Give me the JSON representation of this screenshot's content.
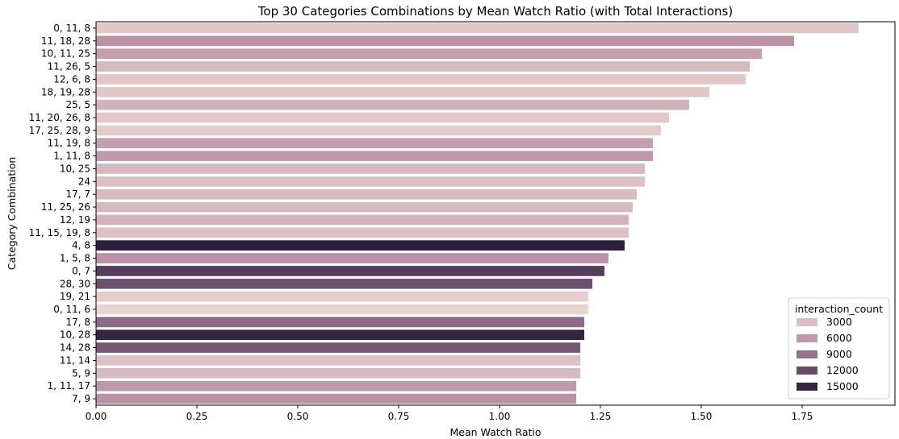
{
  "chart_data": {
    "type": "bar",
    "orientation": "horizontal",
    "title": "Top 30 Categories Combinations by Mean Watch Ratio (with Total Interactions)",
    "xlabel": "Mean Watch Ratio",
    "ylabel": "Category Combination",
    "xlim": [
      0,
      1.98
    ],
    "xticks": [
      0.0,
      0.25,
      0.5,
      0.75,
      1.0,
      1.25,
      1.5,
      1.75
    ],
    "xtick_labels": [
      "0.00",
      "0.25",
      "0.50",
      "0.75",
      "1.00",
      "1.25",
      "1.50",
      "1.75"
    ],
    "grid": false,
    "categories": [
      "0, 11, 8",
      "11, 18, 28",
      "10, 11, 25",
      "11, 26, 5",
      "12, 6, 8",
      "18, 19, 28",
      "25, 5",
      "11, 20, 26, 8",
      "17, 25, 28, 9",
      "11, 19, 8",
      "1, 11, 8",
      "10, 25",
      "24",
      "17, 7",
      "11, 25, 26",
      "12, 19",
      "11, 15, 19, 8",
      "4, 8",
      "1, 5, 8",
      "0, 7",
      "28, 30",
      "19, 21",
      "0, 11, 6",
      "17, 8",
      "10, 28",
      "14, 28",
      "11, 14",
      "5, 9",
      "1, 11, 17",
      "7, 9"
    ],
    "values": [
      1.89,
      1.73,
      1.65,
      1.62,
      1.61,
      1.52,
      1.47,
      1.42,
      1.4,
      1.38,
      1.38,
      1.36,
      1.36,
      1.34,
      1.33,
      1.32,
      1.32,
      1.31,
      1.27,
      1.26,
      1.23,
      1.22,
      1.22,
      1.21,
      1.21,
      1.2,
      1.2,
      1.2,
      1.19,
      1.19
    ],
    "interaction_count": [
      2500,
      6500,
      5500,
      3500,
      2500,
      2500,
      4000,
      2500,
      2200,
      5500,
      6000,
      3500,
      3000,
      3500,
      3500,
      4000,
      3000,
      15500,
      6500,
      13000,
      11500,
      2000,
      1500,
      9500,
      15000,
      11000,
      3000,
      3500,
      6000,
      6500
    ],
    "legend": {
      "title": "interaction_count",
      "placement": "lower-right",
      "entries": [
        {
          "label": "3000",
          "value": 3000
        },
        {
          "label": "6000",
          "value": 6000
        },
        {
          "label": "9000",
          "value": 9000
        },
        {
          "label": "12000",
          "value": 12000
        },
        {
          "label": "15000",
          "value": 15000
        }
      ]
    },
    "colors": {
      "palette_low": "#ead4d1",
      "palette_mid": "#b58aa0",
      "palette_high": "#2d1e3e"
    }
  }
}
